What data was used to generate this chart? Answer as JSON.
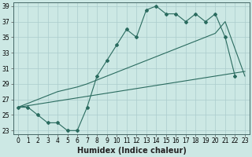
{
  "background_color": "#cce8e4",
  "grid_color": "#aacccc",
  "line_color": "#2a6b5f",
  "xlim": [
    -0.5,
    23.5
  ],
  "ylim": [
    22.5,
    39.5
  ],
  "xticks": [
    0,
    1,
    2,
    3,
    4,
    5,
    6,
    7,
    8,
    9,
    10,
    11,
    12,
    13,
    14,
    15,
    16,
    17,
    18,
    19,
    20,
    21,
    22,
    23
  ],
  "yticks": [
    23,
    25,
    27,
    29,
    31,
    33,
    35,
    37,
    39
  ],
  "xlabel": "Humidex (Indice chaleur)",
  "tick_fontsize": 5.5,
  "label_fontsize": 7.0,
  "series1_x": [
    0,
    1,
    2,
    3,
    4,
    5,
    6,
    7,
    8,
    9,
    10,
    11,
    12,
    13,
    14,
    15,
    16,
    17,
    18,
    19,
    20,
    21,
    22,
    23
  ],
  "series1_y": [
    26,
    26,
    25,
    24,
    24,
    23,
    23,
    26,
    30,
    32,
    34,
    36,
    35,
    38.5,
    39,
    38,
    38,
    37,
    38,
    37,
    38,
    35,
    30,
    null
  ],
  "series2_x": [
    0,
    1,
    2,
    3,
    4,
    5,
    6,
    7,
    8,
    9,
    10,
    11,
    12,
    13,
    14,
    15,
    16,
    17,
    18,
    19,
    20,
    21,
    23
  ],
  "series2_y": [
    26,
    26.5,
    27,
    27.5,
    28,
    28.3,
    28.6,
    29,
    29.5,
    30,
    30.5,
    31,
    31.5,
    32,
    32.5,
    33,
    33.5,
    34,
    34.5,
    35,
    35.5,
    37,
    30
  ],
  "series3_x": [
    0,
    1,
    2,
    3,
    4,
    5,
    6,
    7,
    8,
    9,
    10,
    11,
    12,
    13,
    14,
    15,
    16,
    17,
    18,
    19,
    20,
    21,
    22,
    23
  ],
  "series3_y": [
    26,
    26.2,
    26.4,
    26.6,
    26.8,
    27,
    27.2,
    27.4,
    27.6,
    27.8,
    28,
    28.2,
    28.4,
    28.6,
    28.8,
    29,
    29.2,
    29.4,
    29.6,
    29.8,
    30,
    30.2,
    30.4,
    30.6
  ]
}
